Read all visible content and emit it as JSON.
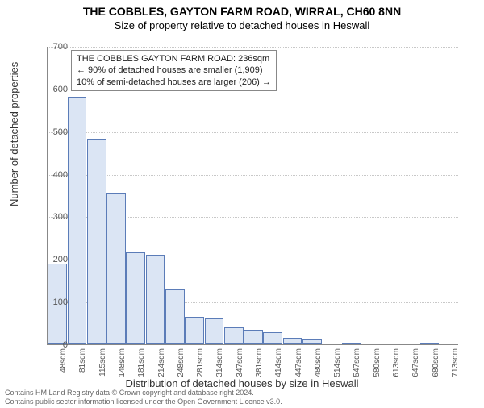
{
  "title": "THE COBBLES, GAYTON FARM ROAD, WIRRAL, CH60 8NN",
  "subtitle": "Size of property relative to detached houses in Heswall",
  "ylabel": "Number of detached properties",
  "xlabel": "Distribution of detached houses by size in Heswall",
  "chart": {
    "type": "histogram",
    "ylim": [
      0,
      700
    ],
    "ytick_step": 100,
    "bar_fill": "#dbe5f4",
    "bar_stroke": "#5b7cb8",
    "grid_color": "#c8c8c8",
    "background_color": "#ffffff",
    "axis_color": "#888888",
    "marker_color": "#cc3333",
    "marker_position": 0.285,
    "categories": [
      "48sqm",
      "81sqm",
      "115sqm",
      "148sqm",
      "181sqm",
      "214sqm",
      "248sqm",
      "281sqm",
      "314sqm",
      "347sqm",
      "381sqm",
      "414sqm",
      "447sqm",
      "480sqm",
      "514sqm",
      "547sqm",
      "580sqm",
      "613sqm",
      "647sqm",
      "680sqm",
      "713sqm"
    ],
    "values": [
      190,
      580,
      480,
      355,
      215,
      210,
      128,
      65,
      60,
      40,
      35,
      28,
      15,
      12,
      0,
      4,
      0,
      0,
      0,
      3,
      0
    ]
  },
  "annotation": {
    "line1": "THE COBBLES GAYTON FARM ROAD: 236sqm",
    "line2": "← 90% of detached houses are smaller (1,909)",
    "line3": "10% of semi-detached houses are larger (206) →"
  },
  "footer": {
    "line1": "Contains HM Land Registry data © Crown copyright and database right 2024.",
    "line2": "Contains public sector information licensed under the Open Government Licence v3.0."
  }
}
